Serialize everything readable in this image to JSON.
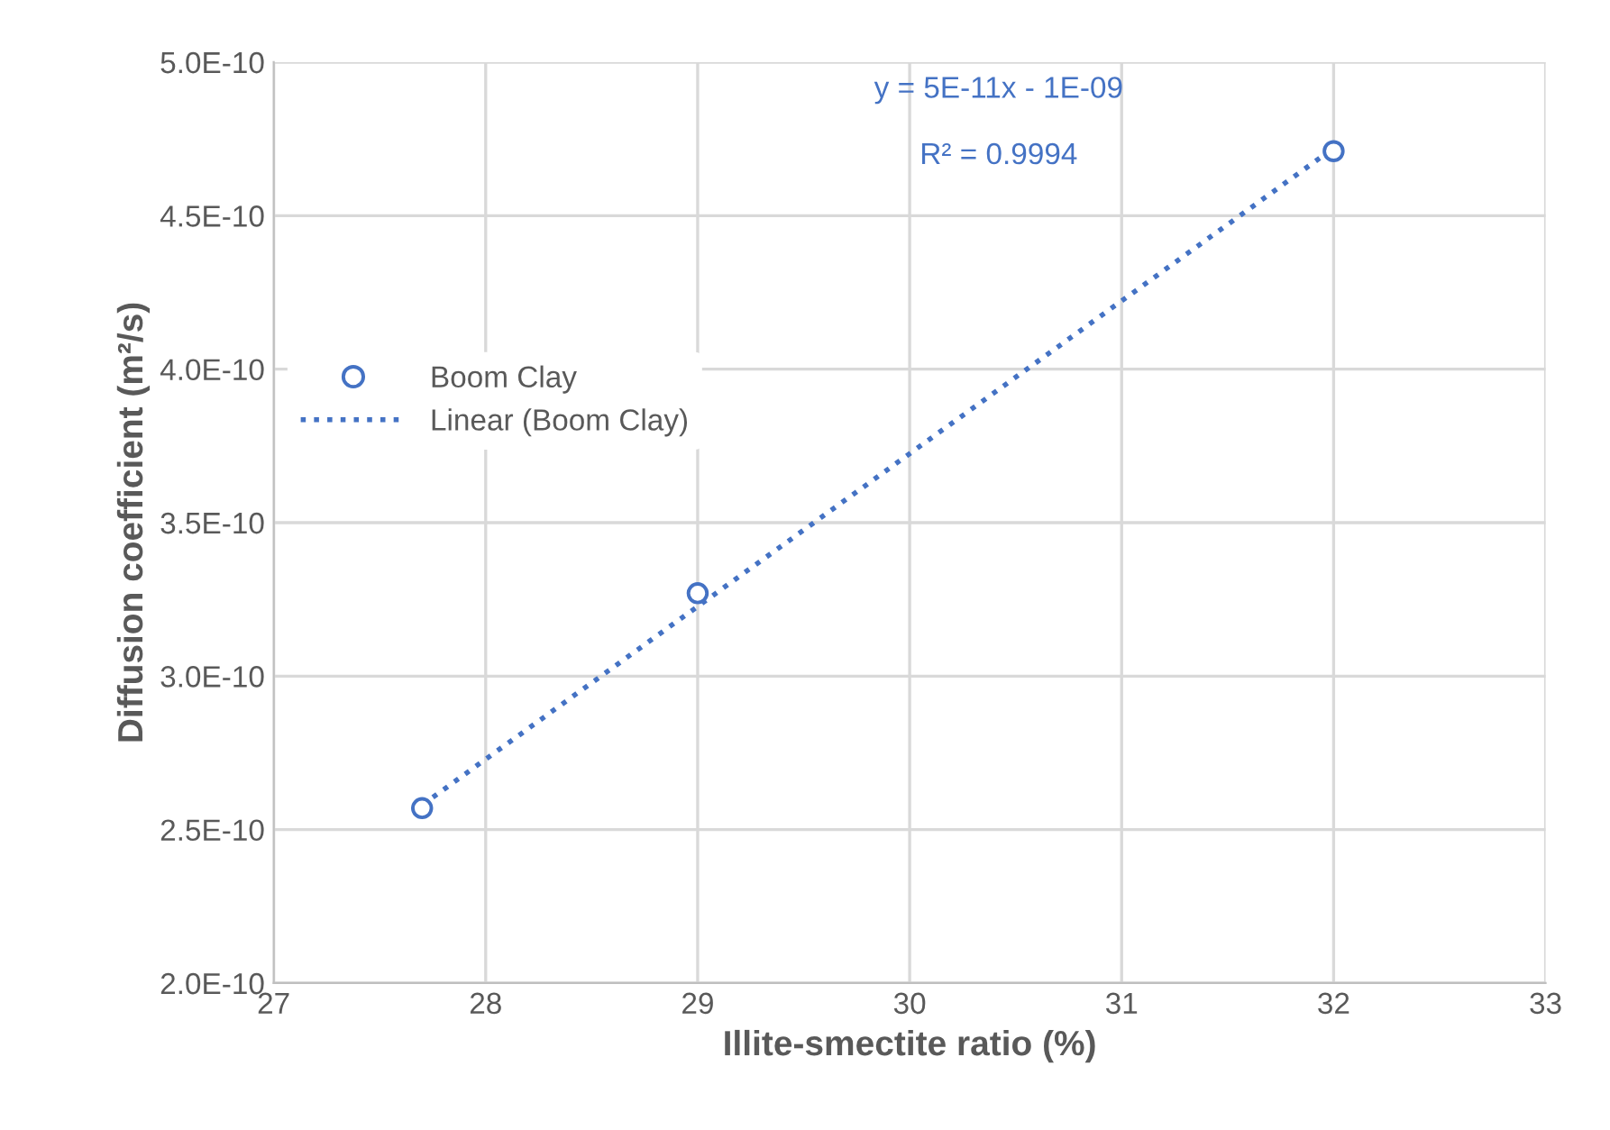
{
  "chart_data": {
    "type": "scatter",
    "xlabel": "Illite-smectite ratio (%)",
    "ylabel": "Diffusion coefficient (m²/s)",
    "series": [
      {
        "name": "Boom Clay",
        "color": "#4472c4",
        "marker": "circle",
        "x": [
          27.7,
          29,
          32
        ],
        "values": [
          2.57e-10,
          3.27e-10,
          4.71e-10
        ]
      },
      {
        "name": "Linear (Boom Clay)",
        "type": "line",
        "color": "#4472c4",
        "marker": "none",
        "line_style": "dotted",
        "x": [
          27.7,
          32
        ],
        "values": [
          2.58e-10,
          4.72e-10
        ]
      }
    ],
    "xlim": [
      27,
      33
    ],
    "xticks": [
      27,
      28,
      29,
      30,
      31,
      32,
      33
    ],
    "ylim": [
      2e-10,
      5e-10
    ],
    "yticks": [
      {
        "value": 2e-10,
        "label": "2.0E-10"
      },
      {
        "value": 2.5e-10,
        "label": "2.5E-10"
      },
      {
        "value": 3e-10,
        "label": "3.0E-10"
      },
      {
        "value": 3.5e-10,
        "label": "3.5E-10"
      },
      {
        "value": 4e-10,
        "label": "4.0E-10"
      },
      {
        "value": 4.5e-10,
        "label": "4.5E-10"
      },
      {
        "value": 5e-10,
        "label": "5.0E-10"
      }
    ],
    "annotations": [
      "y = 5E-11x - 1E-09",
      "R² = 0.9994"
    ],
    "grid": true,
    "legend": "left"
  }
}
